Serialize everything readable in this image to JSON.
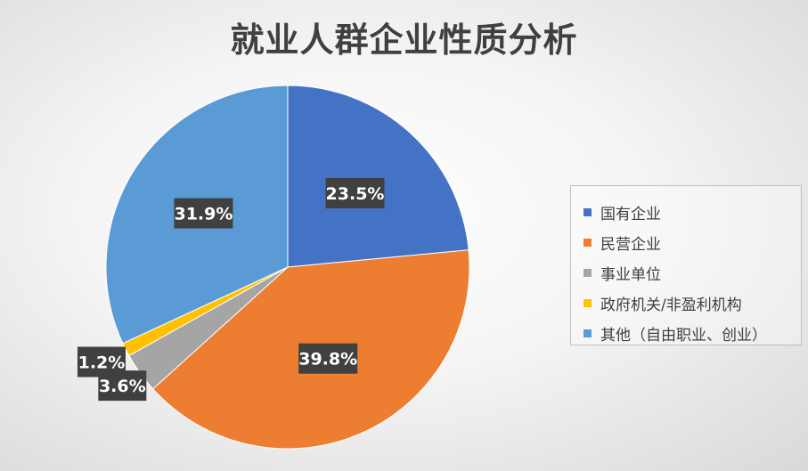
{
  "chart_data": {
    "type": "pie",
    "title": "就业人群企业性质分析",
    "legend_position": "right",
    "slices": [
      {
        "name": "国有企业",
        "value": 23.5,
        "label": "23.5%",
        "color": "#4472C4"
      },
      {
        "name": "民营企业",
        "value": 39.8,
        "label": "39.8%",
        "color": "#ED7D31"
      },
      {
        "name": "事业单位",
        "value": 3.6,
        "label": "3.6%",
        "color": "#A5A5A5"
      },
      {
        "name": "政府机关/非盈利机构",
        "value": 1.2,
        "label": "1.2%",
        "color": "#FFC000"
      },
      {
        "name": "其他（自由职业、创业）",
        "value": 31.9,
        "label": "31.9%",
        "color": "#5B9BD5"
      }
    ]
  }
}
